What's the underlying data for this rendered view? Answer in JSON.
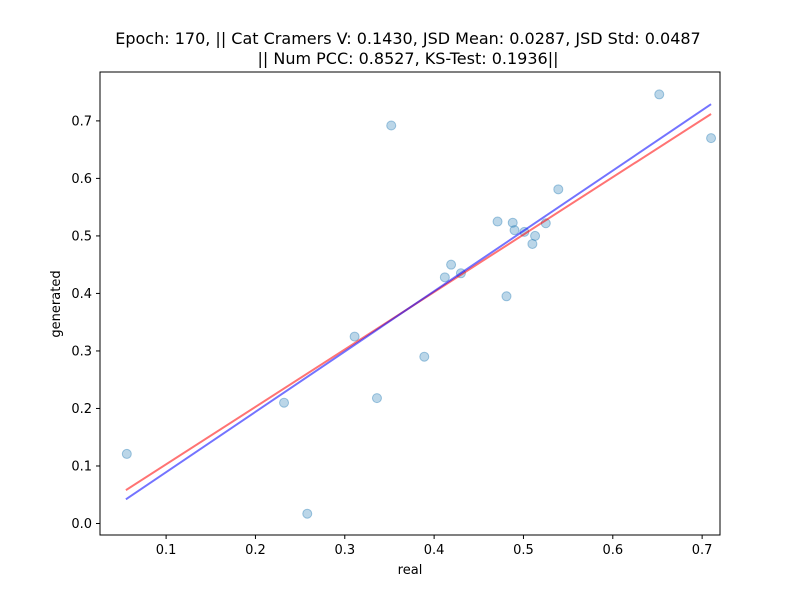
{
  "chart_data": {
    "type": "scatter",
    "title_line1": "Epoch: 170, || Cat Cramers V: 0.1430, JSD Mean: 0.0287, JSD Std: 0.0487",
    "title_line2": "|| Num PCC: 0.8527, KS-Test: 0.1936||",
    "xlabel": "real",
    "ylabel": "generated",
    "xlim": [
      0.026,
      0.72
    ],
    "ylim": [
      -0.02,
      0.785
    ],
    "xticks": [
      0.1,
      0.2,
      0.3,
      0.4,
      0.5,
      0.6,
      0.7
    ],
    "xtick_labels": [
      "0.1",
      "0.2",
      "0.3",
      "0.4",
      "0.5",
      "0.6",
      "0.7"
    ],
    "yticks": [
      0.0,
      0.1,
      0.2,
      0.3,
      0.4,
      0.5,
      0.6,
      0.7
    ],
    "ytick_labels": [
      "0.0",
      "0.1",
      "0.2",
      "0.3",
      "0.4",
      "0.5",
      "0.6",
      "0.7"
    ],
    "points": [
      {
        "x": 0.056,
        "y": 0.121
      },
      {
        "x": 0.232,
        "y": 0.21
      },
      {
        "x": 0.258,
        "y": 0.017
      },
      {
        "x": 0.311,
        "y": 0.325
      },
      {
        "x": 0.336,
        "y": 0.218
      },
      {
        "x": 0.352,
        "y": 0.692
      },
      {
        "x": 0.389,
        "y": 0.29
      },
      {
        "x": 0.412,
        "y": 0.428
      },
      {
        "x": 0.419,
        "y": 0.45
      },
      {
        "x": 0.43,
        "y": 0.435
      },
      {
        "x": 0.471,
        "y": 0.525
      },
      {
        "x": 0.481,
        "y": 0.395
      },
      {
        "x": 0.488,
        "y": 0.523
      },
      {
        "x": 0.49,
        "y": 0.51
      },
      {
        "x": 0.501,
        "y": 0.507
      },
      {
        "x": 0.51,
        "y": 0.486
      },
      {
        "x": 0.513,
        "y": 0.5
      },
      {
        "x": 0.525,
        "y": 0.522
      },
      {
        "x": 0.539,
        "y": 0.581
      },
      {
        "x": 0.652,
        "y": 0.746
      },
      {
        "x": 0.71,
        "y": 0.67
      }
    ],
    "lines": [
      {
        "name": "red-fit-line",
        "color": "#ff0000",
        "opacity": 0.55,
        "x": [
          0.055,
          0.71
        ],
        "y": [
          0.058,
          0.712
        ]
      },
      {
        "name": "blue-fit-line",
        "color": "#0000ff",
        "opacity": 0.55,
        "x": [
          0.055,
          0.71
        ],
        "y": [
          0.042,
          0.729
        ]
      }
    ],
    "point_color": "#1f77b4",
    "point_opacity": 0.3
  }
}
